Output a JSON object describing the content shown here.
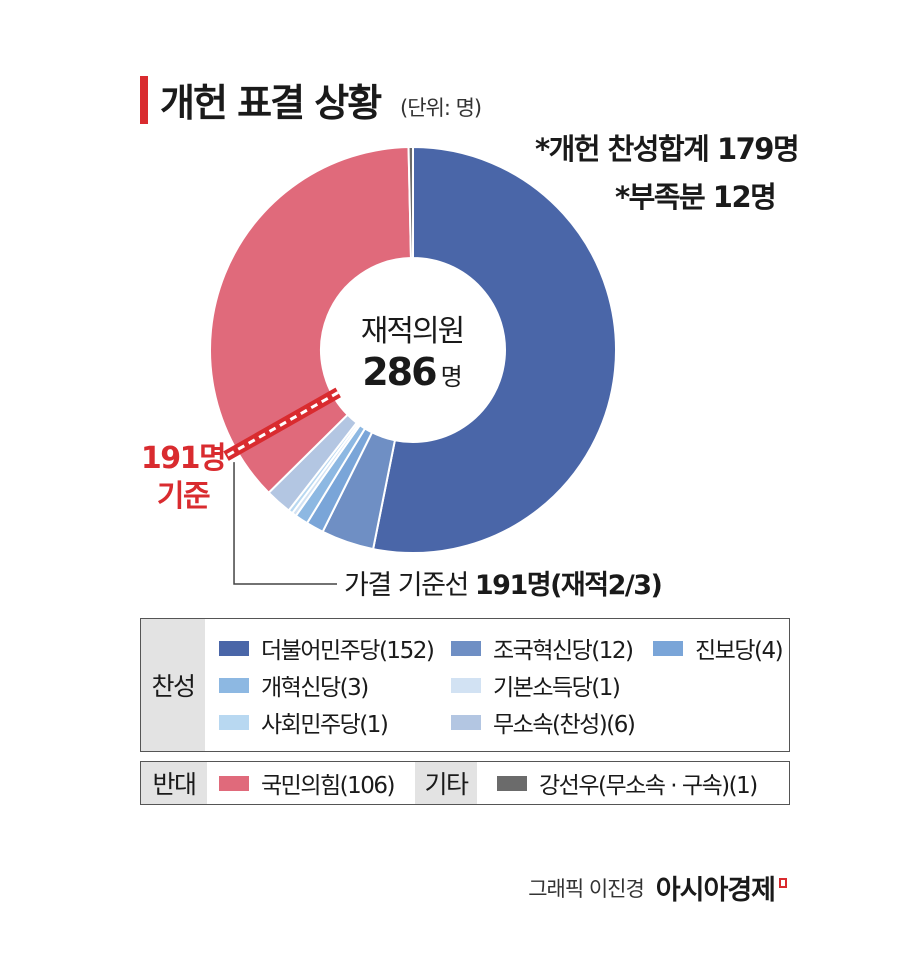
{
  "header": {
    "title": "개헌 표결 상황",
    "unit": "(단위: 명)"
  },
  "notes": {
    "approve_total": "*개헌 찬성합계 179명",
    "shortfall": "*부족분 12명"
  },
  "center": {
    "label": "재적의원",
    "value": "286",
    "unit": "명"
  },
  "threshold": {
    "line1": "191명",
    "line2": "기준"
  },
  "guide": {
    "prefix": "가결 기준선 ",
    "bold": "191명(재적2/3)"
  },
  "legend": {
    "approve_heading": "찬성",
    "oppose_heading": "반대",
    "other_heading": "기타",
    "approve_items": [
      {
        "label": "더불어민주당(152)",
        "color": "#4a66a8"
      },
      {
        "label": "조국혁신당(12)",
        "color": "#6f8fc4"
      },
      {
        "label": "진보당(4)",
        "color": "#7aa5d8"
      },
      {
        "label": "개혁신당(3)",
        "color": "#8db8e2"
      },
      {
        "label": "기본소득당(1)",
        "color": "#d2e2f3"
      },
      {
        "label": "사회민주당(1)",
        "color": "#b8d8f1"
      },
      {
        "label": "무소속(찬성)(6)",
        "color": "#b3c6e2"
      }
    ],
    "oppose_items": [
      {
        "label": "국민의힘(106)",
        "color": "#e06a7b"
      }
    ],
    "other_items": [
      {
        "label": "강선우(무소속 · 구속)(1)",
        "color": "#6b6b6b"
      }
    ]
  },
  "credit": {
    "text": "그래픽 이진경",
    "brand": "아시아경제"
  },
  "chart_data": {
    "type": "pie",
    "categories": [
      "더불어민주당",
      "조국혁신당",
      "진보당",
      "개혁신당",
      "기본소득당",
      "사회민주당",
      "무소속(찬성)",
      "국민의힘",
      "강선우(무소속 · 구속)"
    ],
    "values": [
      152,
      12,
      4,
      3,
      1,
      1,
      6,
      106,
      1
    ],
    "colors": [
      "#4a66a8",
      "#6f8fc4",
      "#7aa5d8",
      "#8db8e2",
      "#d2e2f3",
      "#b8d8f1",
      "#b3c6e2",
      "#e06a7b",
      "#6b6b6b"
    ],
    "total": 286,
    "threshold": 191,
    "title": "개헌 표결 상황",
    "legend": "bottom"
  }
}
